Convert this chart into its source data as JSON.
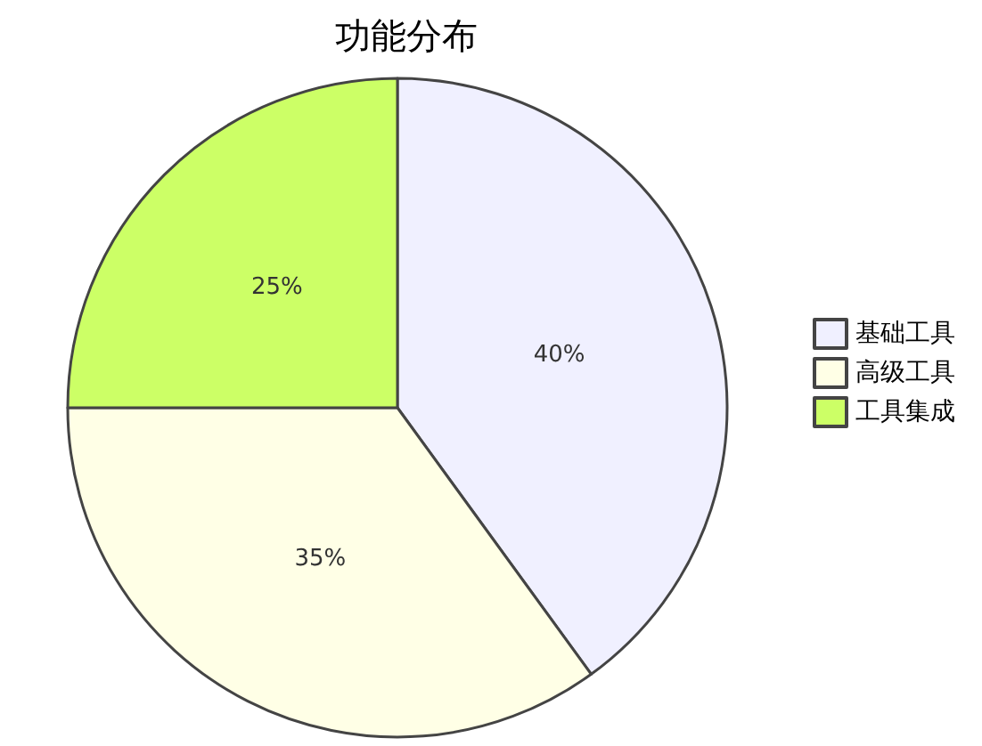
{
  "chart_data": {
    "type": "pie",
    "title": "功能分布",
    "categories": [
      "基础工具",
      "高级工具",
      "工具集成"
    ],
    "values": [
      40,
      35,
      25
    ],
    "colors": [
      "#f0f0ff",
      "#ffffe6",
      "#ccff66"
    ],
    "value_labels": [
      "40%",
      "35%",
      "25%"
    ],
    "legend": "right"
  }
}
